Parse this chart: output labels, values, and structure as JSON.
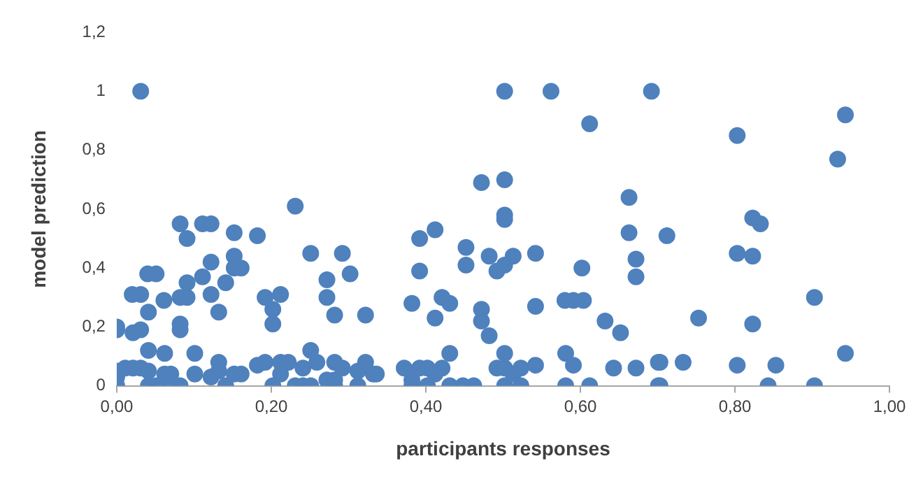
{
  "chart_data": {
    "type": "scatter",
    "xlabel": "participants responses",
    "ylabel": "model prediction",
    "color": "#4f81bd",
    "marker": "circle",
    "grid": false,
    "legend": false,
    "xlim": [
      0,
      1
    ],
    "xticks": [
      {
        "value": 0,
        "label": "0,00"
      },
      {
        "value": 0.2,
        "label": "0,20"
      },
      {
        "value": 0.4,
        "label": "0,40"
      },
      {
        "value": 0.6,
        "label": "0,60"
      },
      {
        "value": 0.8,
        "label": "0,80"
      },
      {
        "value": 1,
        "label": "1,00"
      }
    ],
    "ylim": [
      0,
      1.2
    ],
    "yticks": [
      0,
      {
        "value": 0.2,
        "label": "0,2"
      },
      {
        "value": 0.4,
        "label": "0,4"
      },
      {
        "value": 0.6,
        "label": "0,6"
      },
      {
        "value": 0.8,
        "label": "0,8"
      },
      1,
      {
        "value": 1.2,
        "label": "1,2"
      }
    ],
    "x": [
      0.031,
      0.231,
      0.082,
      0.111,
      0.122,
      0.091,
      0.152,
      0.182,
      0.122,
      0.152,
      0.152,
      0.161,
      0.251,
      0.292,
      0.302,
      0.272,
      0.04,
      0.051,
      0.111,
      0.091,
      0.141,
      0.02,
      0.031,
      0.082,
      0.091,
      0.122,
      0.192,
      0.212,
      0.202,
      0.202,
      0.272,
      0.061,
      0.041,
      0.132,
      0.282,
      0.322,
      0.0,
      0.0,
      0.021,
      0.031,
      0.082,
      0.082,
      0.041,
      0.062,
      0.101,
      0.251,
      0.0,
      0.0,
      0.0,
      0.011,
      0.021,
      0.031,
      0.041,
      0.041,
      0.051,
      0.062,
      0.07,
      0.07,
      0.082,
      0.101,
      0.122,
      0.132,
      0.132,
      0.141,
      0.152,
      0.161,
      0.182,
      0.192,
      0.202,
      0.212,
      0.222,
      0.212,
      0.231,
      0.241,
      0.251,
      0.241,
      0.259,
      0.272,
      0.282,
      0.282,
      0.292,
      0.282,
      0.312,
      0.322,
      0.312,
      0.332,
      0.502,
      0.562,
      0.692,
      0.612,
      0.472,
      0.502,
      0.502,
      0.502,
      0.663,
      0.392,
      0.412,
      0.452,
      0.663,
      0.392,
      0.452,
      0.482,
      0.513,
      0.492,
      0.502,
      0.542,
      0.602,
      0.672,
      0.672,
      0.382,
      0.421,
      0.431,
      0.412,
      0.472,
      0.472,
      0.482,
      0.542,
      0.58,
      0.591,
      0.604,
      0.632,
      0.652,
      0.336,
      0.372,
      0.392,
      0.402,
      0.382,
      0.382,
      0.402,
      0.421,
      0.431,
      0.412,
      0.431,
      0.448,
      0.462,
      0.492,
      0.502,
      0.502,
      0.513,
      0.523,
      0.502,
      0.523,
      0.542,
      0.581,
      0.591,
      0.581,
      0.612,
      0.643,
      0.672,
      0.701,
      0.701,
      0.943,
      0.803,
      0.933,
      0.823,
      0.833,
      0.712,
      0.803,
      0.823,
      0.903,
      0.753,
      0.823,
      0.703,
      0.733,
      0.803,
      0.853,
      0.943,
      0.703,
      0.843,
      0.903
    ],
    "values": [
      1.0,
      0.61,
      0.55,
      0.55,
      0.55,
      0.5,
      0.52,
      0.51,
      0.42,
      0.44,
      0.4,
      0.4,
      0.45,
      0.45,
      0.38,
      0.36,
      0.38,
      0.38,
      0.37,
      0.35,
      0.35,
      0.31,
      0.31,
      0.3,
      0.3,
      0.31,
      0.3,
      0.31,
      0.26,
      0.21,
      0.3,
      0.29,
      0.25,
      0.25,
      0.24,
      0.24,
      0.19,
      0.2,
      0.18,
      0.19,
      0.21,
      0.19,
      0.12,
      0.11,
      0.11,
      0.12,
      0.05,
      0.03,
      0.0,
      0.06,
      0.06,
      0.06,
      0.05,
      0.0,
      0.0,
      0.04,
      0.04,
      0.0,
      0.0,
      0.04,
      0.03,
      0.08,
      0.05,
      0.0,
      0.04,
      0.04,
      0.07,
      0.08,
      0.0,
      0.08,
      0.08,
      0.04,
      0.0,
      0.0,
      0.0,
      0.06,
      0.08,
      0.02,
      0.08,
      0.02,
      0.06,
      0.0,
      0.05,
      0.08,
      0.0,
      0.04,
      1.0,
      1.0,
      1.0,
      0.89,
      0.69,
      0.7,
      0.58,
      0.565,
      0.64,
      0.5,
      0.53,
      0.47,
      0.52,
      0.39,
      0.41,
      0.44,
      0.44,
      0.39,
      0.41,
      0.45,
      0.4,
      0.43,
      0.37,
      0.28,
      0.3,
      0.28,
      0.23,
      0.26,
      0.22,
      0.17,
      0.27,
      0.29,
      0.29,
      0.29,
      0.22,
      0.18,
      0.04,
      0.06,
      0.06,
      0.06,
      0.02,
      0.0,
      0.0,
      0.06,
      0.11,
      0.04,
      0.0,
      0.0,
      0.0,
      0.06,
      0.11,
      0.06,
      0.04,
      0.06,
      0.0,
      0.0,
      0.07,
      0.11,
      0.07,
      0.0,
      0.0,
      0.06,
      0.06,
      0.08,
      0.0,
      0.92,
      0.85,
      0.77,
      0.57,
      0.55,
      0.51,
      0.45,
      0.44,
      0.3,
      0.23,
      0.21,
      0.08,
      0.08,
      0.07,
      0.07,
      0.11,
      0.0,
      0.0,
      0.0
    ]
  }
}
